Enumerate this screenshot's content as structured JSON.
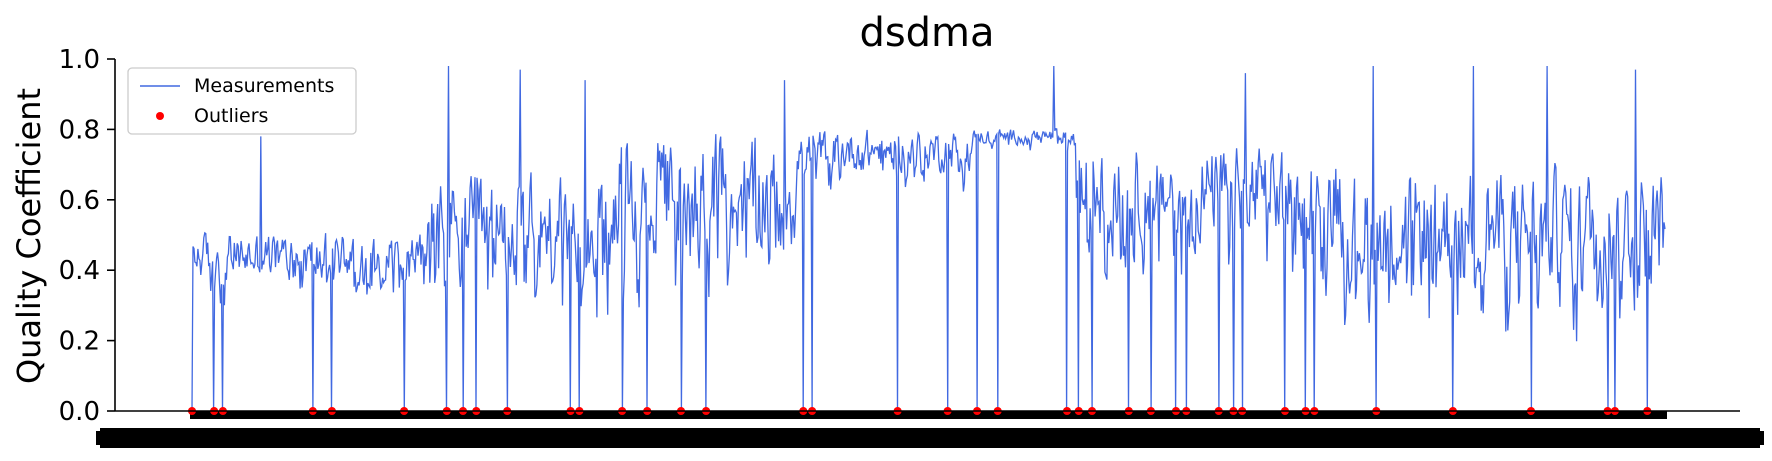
{
  "chart_data": {
    "type": "line",
    "title": "dsdma",
    "xlabel": "",
    "ylabel": "Quality Coefficient",
    "ylim": [
      0.0,
      1.0
    ],
    "yticks": [
      "0.0",
      "0.2",
      "0.4",
      "0.6",
      "0.8",
      "1.0"
    ],
    "x_tick_labels_note": "dense overlapping tick labels, illegible",
    "legend": {
      "placement": "top-left",
      "entries": [
        "Measurements",
        "Outliers"
      ]
    },
    "grid": false,
    "colors": {
      "measurements": "#4169e1",
      "outliers": "#ff0000"
    },
    "n_points": 1500,
    "segments": [
      {
        "start": 0.0,
        "end": 0.16,
        "center": 0.44,
        "spread": 0.09
      },
      {
        "start": 0.16,
        "end": 0.29,
        "center": 0.52,
        "spread": 0.19
      },
      {
        "start": 0.29,
        "end": 0.41,
        "center": 0.62,
        "spread": 0.22
      },
      {
        "start": 0.41,
        "end": 0.53,
        "center": 0.74,
        "spread": 0.08
      },
      {
        "start": 0.53,
        "end": 0.6,
        "center": 0.78,
        "spread": 0.03
      },
      {
        "start": 0.6,
        "end": 0.78,
        "center": 0.62,
        "spread": 0.18
      },
      {
        "start": 0.78,
        "end": 1.0,
        "center": 0.52,
        "spread": 0.22
      }
    ],
    "peaks": [
      {
        "pos": 0.047,
        "value": 0.78
      },
      {
        "pos": 0.174,
        "value": 0.98
      },
      {
        "pos": 0.223,
        "value": 0.97
      },
      {
        "pos": 0.267,
        "value": 0.94
      },
      {
        "pos": 0.402,
        "value": 0.94
      },
      {
        "pos": 0.585,
        "value": 0.98
      },
      {
        "pos": 0.715,
        "value": 0.96
      },
      {
        "pos": 0.802,
        "value": 0.98
      },
      {
        "pos": 0.87,
        "value": 0.98
      },
      {
        "pos": 0.92,
        "value": 0.98
      },
      {
        "pos": 0.98,
        "value": 0.97
      }
    ],
    "outliers": [
      {
        "pos": 0.0,
        "value": 0.0
      },
      {
        "pos": 0.015,
        "value": 0.0
      },
      {
        "pos": 0.021,
        "value": 0.0
      },
      {
        "pos": 0.082,
        "value": 0.0
      },
      {
        "pos": 0.095,
        "value": 0.0
      },
      {
        "pos": 0.144,
        "value": 0.0
      },
      {
        "pos": 0.173,
        "value": 0.0
      },
      {
        "pos": 0.184,
        "value": 0.0
      },
      {
        "pos": 0.193,
        "value": 0.0
      },
      {
        "pos": 0.214,
        "value": 0.0
      },
      {
        "pos": 0.257,
        "value": 0.0
      },
      {
        "pos": 0.263,
        "value": 0.0
      },
      {
        "pos": 0.292,
        "value": 0.0
      },
      {
        "pos": 0.309,
        "value": 0.0
      },
      {
        "pos": 0.332,
        "value": 0.0
      },
      {
        "pos": 0.349,
        "value": 0.0
      },
      {
        "pos": 0.415,
        "value": 0.0
      },
      {
        "pos": 0.421,
        "value": 0.0
      },
      {
        "pos": 0.479,
        "value": 0.0
      },
      {
        "pos": 0.513,
        "value": 0.0
      },
      {
        "pos": 0.533,
        "value": 0.0
      },
      {
        "pos": 0.547,
        "value": 0.0
      },
      {
        "pos": 0.594,
        "value": 0.0
      },
      {
        "pos": 0.602,
        "value": 0.0
      },
      {
        "pos": 0.611,
        "value": 0.0
      },
      {
        "pos": 0.636,
        "value": 0.0
      },
      {
        "pos": 0.651,
        "value": 0.0
      },
      {
        "pos": 0.668,
        "value": 0.0
      },
      {
        "pos": 0.675,
        "value": 0.0
      },
      {
        "pos": 0.697,
        "value": 0.0
      },
      {
        "pos": 0.707,
        "value": 0.0
      },
      {
        "pos": 0.713,
        "value": 0.0
      },
      {
        "pos": 0.742,
        "value": 0.0
      },
      {
        "pos": 0.756,
        "value": 0.0
      },
      {
        "pos": 0.762,
        "value": 0.0
      },
      {
        "pos": 0.804,
        "value": 0.0
      },
      {
        "pos": 0.856,
        "value": 0.0
      },
      {
        "pos": 0.909,
        "value": 0.0
      },
      {
        "pos": 0.961,
        "value": 0.0
      },
      {
        "pos": 0.966,
        "value": 0.0
      },
      {
        "pos": 0.988,
        "value": 0.0
      }
    ]
  }
}
